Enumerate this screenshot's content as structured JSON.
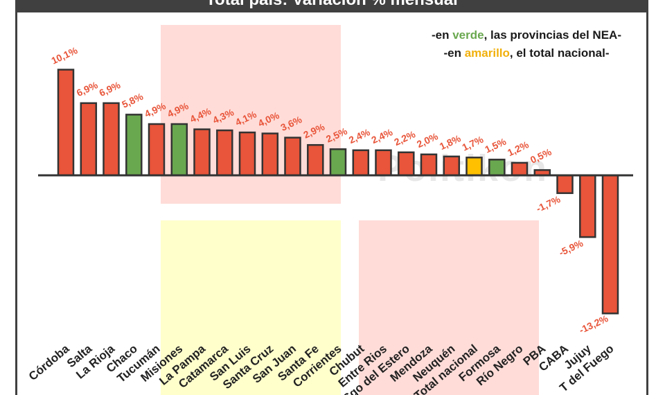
{
  "title": "Total país: Variación % mensual",
  "legend": {
    "line1_prefix": "-en ",
    "line1_highlight": "verde",
    "line1_suffix": ", las provincias del NEA-",
    "line2_prefix": "-en ",
    "line2_highlight": "amarillo",
    "line2_suffix": ", el total nacional-"
  },
  "watermark": "Politikon",
  "colors": {
    "default": "#e8553a",
    "nea": "#6aa84f",
    "national": "#ffc000",
    "label": "#e8553a",
    "outline": "#333333"
  },
  "chart_data": {
    "type": "bar",
    "title": "Total país: Variación % mensual",
    "xlabel": "",
    "ylabel": "",
    "ylim": [
      -14,
      11
    ],
    "categories": [
      "Córdoba",
      "Salta",
      "La Rioja",
      "Chaco",
      "Tucumán",
      "Misiones",
      "La Pampa",
      "Catamarca",
      "San Luis",
      "Santa Cruz",
      "San Juan",
      "Santa Fe",
      "Corrientes",
      "Chubut",
      "Entre Rios",
      "Sgo del Estero",
      "Mendoza",
      "Neuquén",
      "Total nacional",
      "Formosa",
      "Río Negro",
      "PBA",
      "CABA",
      "Jujuy",
      "T del Fuego"
    ],
    "values": [
      10.1,
      6.9,
      6.9,
      5.8,
      4.9,
      4.9,
      4.4,
      4.3,
      4.1,
      4.0,
      3.6,
      2.9,
      2.5,
      2.4,
      2.4,
      2.2,
      2.0,
      1.8,
      1.7,
      1.5,
      1.2,
      0.5,
      -1.7,
      -5.9,
      -13.2
    ],
    "value_labels": [
      "10,1%",
      "6,9%",
      "6,9%",
      "5,8%",
      "4,9%",
      "4,9%",
      "4,4%",
      "4,3%",
      "4,1%",
      "4,0%",
      "3,6%",
      "2,9%",
      "2,5%",
      "2,4%",
      "2,4%",
      "2,2%",
      "2,0%",
      "1,8%",
      "1,7%",
      "1,5%",
      "1,2%",
      "0,5%",
      "-1,7%",
      "-5,9%",
      "-13,2%"
    ],
    "groups": [
      "default",
      "default",
      "default",
      "nea",
      "default",
      "nea",
      "default",
      "default",
      "default",
      "default",
      "default",
      "default",
      "nea",
      "default",
      "default",
      "default",
      "default",
      "default",
      "national",
      "nea",
      "default",
      "default",
      "default",
      "default",
      "default"
    ]
  }
}
